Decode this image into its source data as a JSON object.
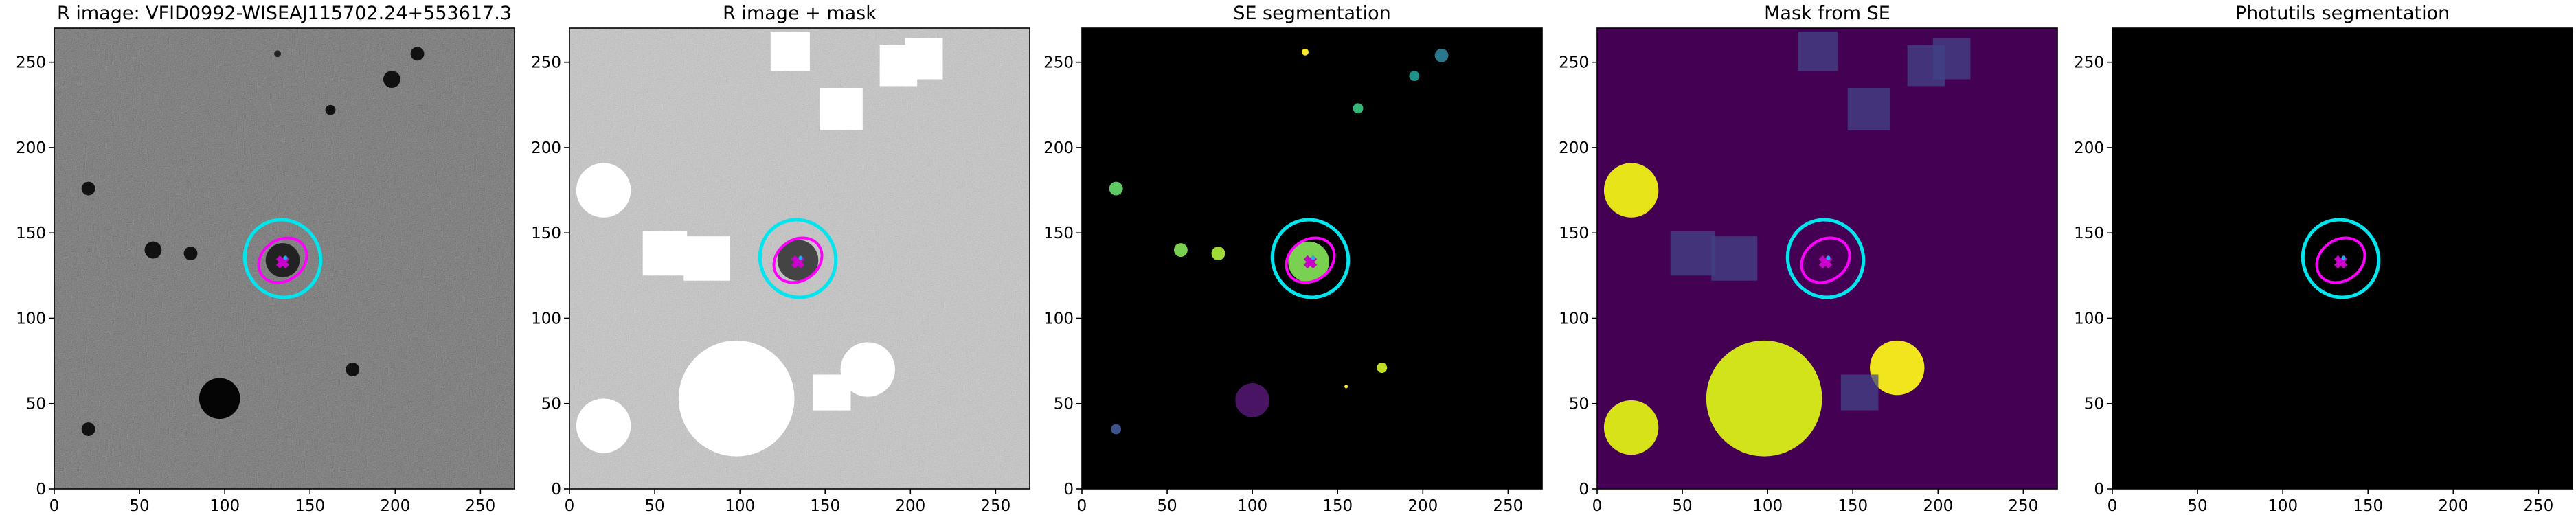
{
  "chart_data": [
    {
      "type": "image",
      "title": "R image: VFID0992-WISEAJ115702.24+553617.3",
      "xlim": [
        0,
        270
      ],
      "ylim": [
        0,
        270
      ],
      "xticks": [
        0,
        50,
        100,
        150,
        200,
        250
      ],
      "yticks": [
        0,
        50,
        100,
        150,
        200,
        250
      ]
    },
    {
      "type": "image",
      "title": "R image + mask",
      "xlim": [
        0,
        270
      ],
      "ylim": [
        0,
        270
      ],
      "xticks": [
        0,
        50,
        100,
        150,
        200,
        250
      ],
      "yticks": [
        0,
        50,
        100,
        150,
        200,
        250
      ]
    },
    {
      "type": "image",
      "title": "SE segmentation",
      "xlim": [
        0,
        270
      ],
      "ylim": [
        0,
        270
      ],
      "xticks": [
        0,
        50,
        100,
        150,
        200,
        250
      ],
      "yticks": [
        0,
        50,
        100,
        150,
        200,
        250
      ]
    },
    {
      "type": "image",
      "title": "Mask from SE",
      "xlim": [
        0,
        270
      ],
      "ylim": [
        0,
        270
      ],
      "xticks": [
        0,
        50,
        100,
        150,
        200,
        250
      ],
      "yticks": [
        0,
        50,
        100,
        150,
        200,
        250
      ]
    },
    {
      "type": "image",
      "title": "Photutils segmentation",
      "xlim": [
        0,
        270
      ],
      "ylim": [
        0,
        270
      ],
      "xticks": [
        0,
        50,
        100,
        150,
        200,
        250
      ],
      "yticks": [
        0,
        50,
        100,
        150,
        200,
        250
      ]
    }
  ]
}
